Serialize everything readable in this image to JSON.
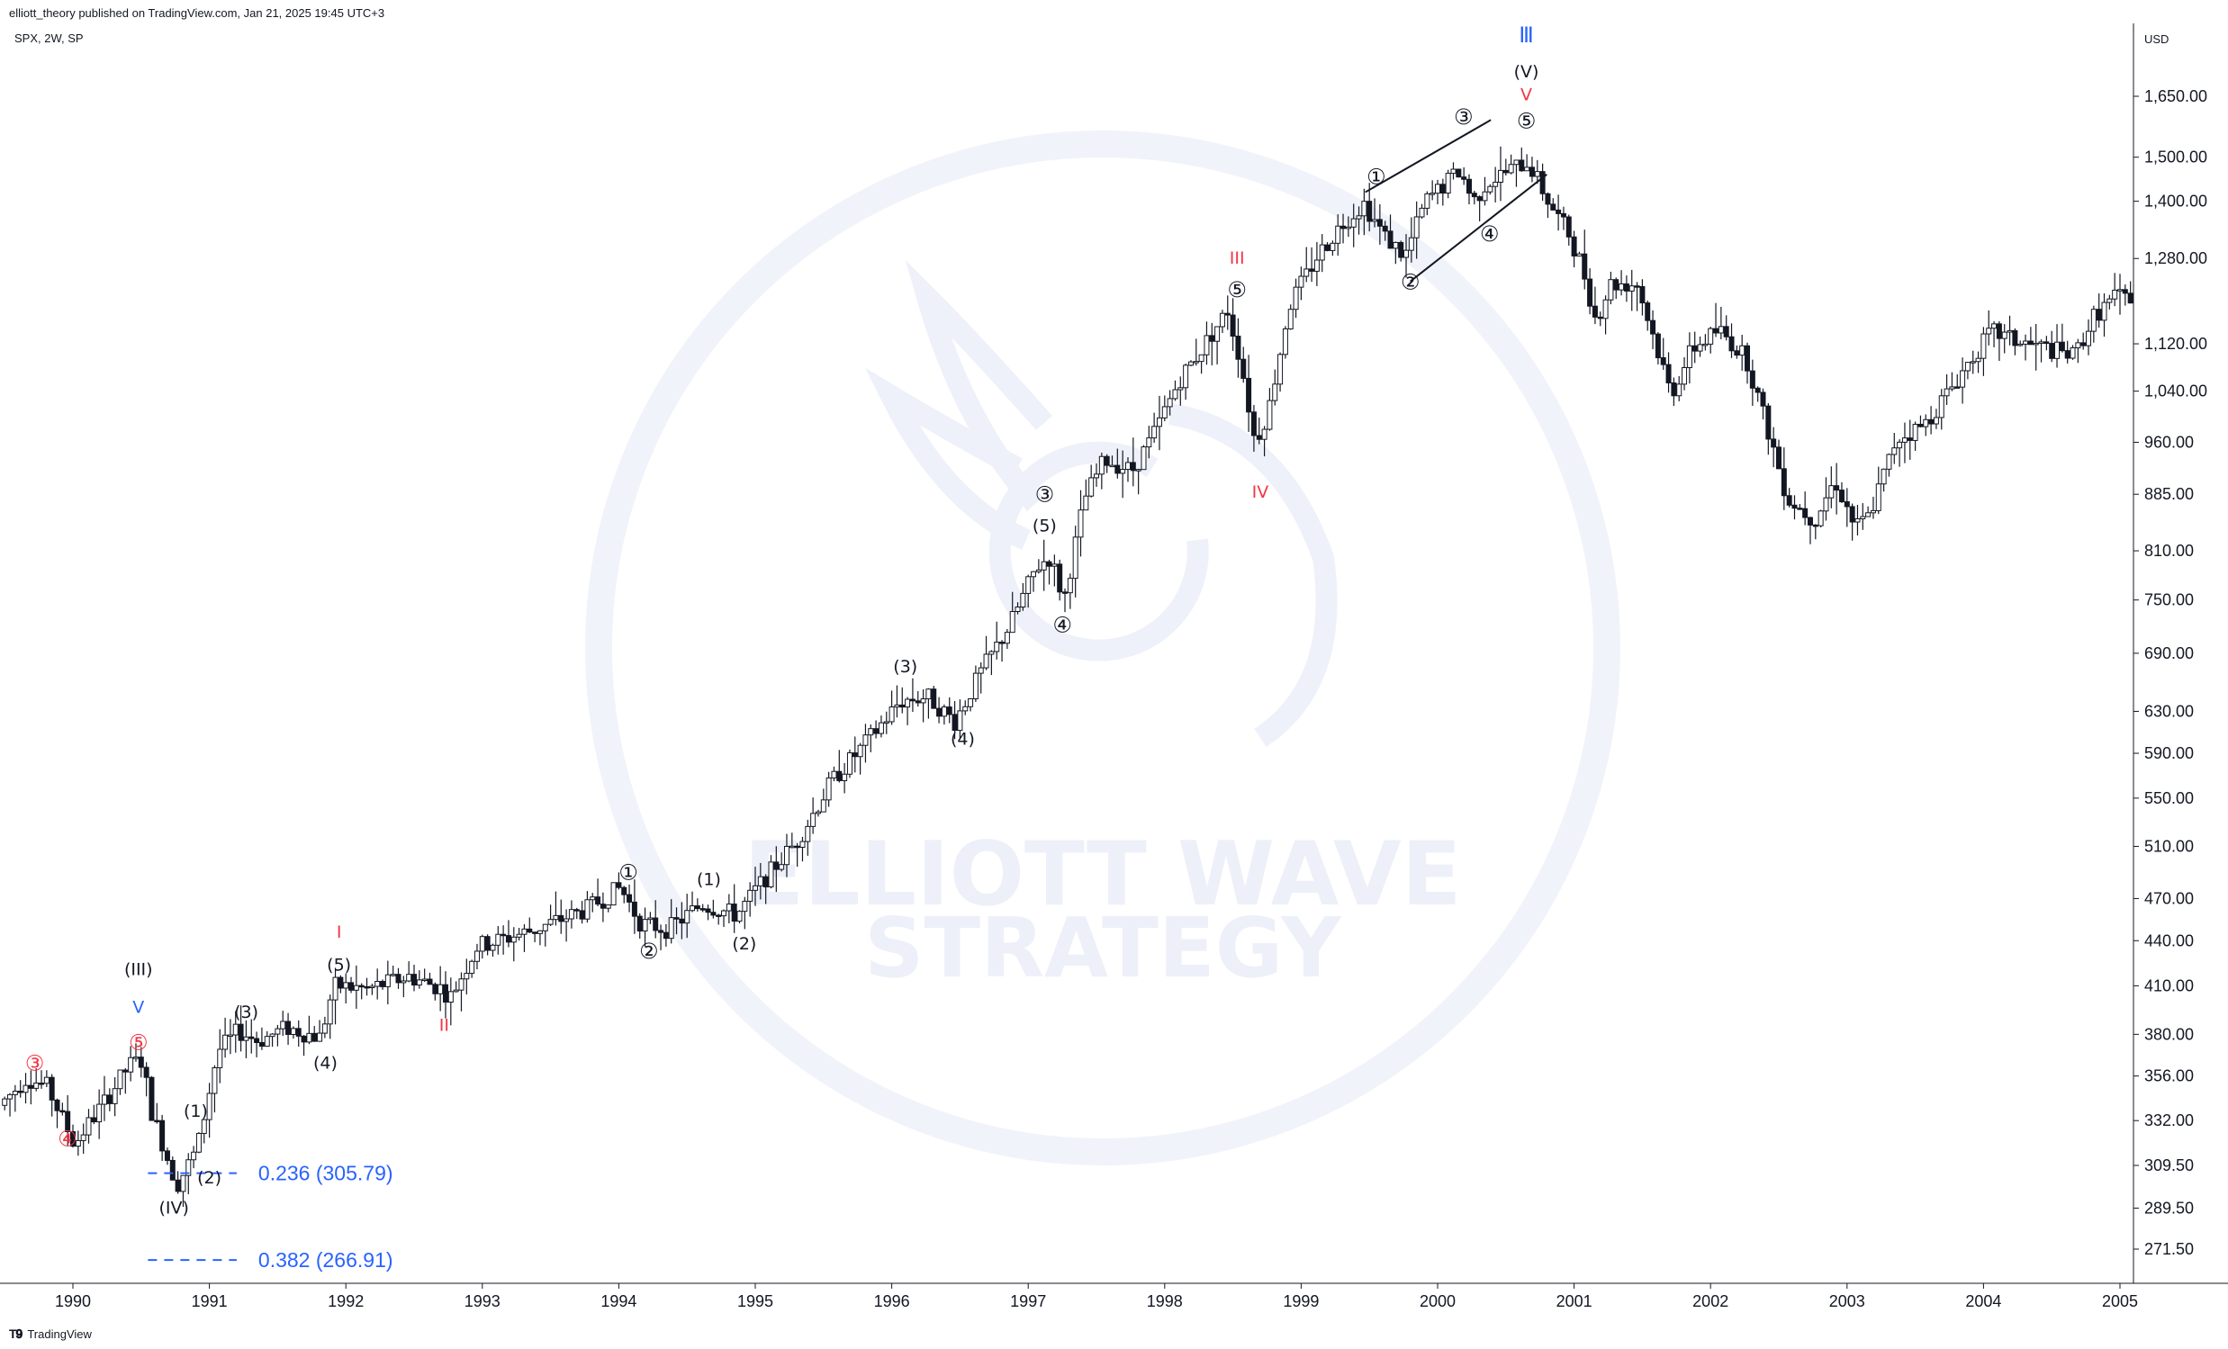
{
  "header": {
    "publish_note": "elliott_theory published on TradingView.com, Jan 21, 2025 19:45 UTC+3",
    "symbol_line": "SPX, 2W, SP"
  },
  "footer": {
    "brand": "TradingView",
    "logo_icon": "tradingview-logo-icon"
  },
  "watermark": {
    "line1": "ELLIOTT WAVE",
    "line2": "STRATEGY",
    "logo_icon": "phoenix-logo-icon"
  },
  "chart_data": {
    "type": "candlestick",
    "currency": "USD",
    "y_scale": "log",
    "ylim": [
      255,
      1810
    ],
    "xlim": [
      1989.5,
      2005.1
    ],
    "y_ticks": [
      "1,650.00",
      "1,500.00",
      "1,400.00",
      "1,280.00",
      "1,120.00",
      "1,040.00",
      "960.00",
      "885.00",
      "810.00",
      "750.00",
      "690.00",
      "630.00",
      "590.00",
      "550.00",
      "510.00",
      "470.00",
      "440.00",
      "410.00",
      "380.00",
      "356.00",
      "332.00",
      "309.50",
      "289.50",
      "271.50"
    ],
    "x_ticks": [
      "1990",
      "1991",
      "1992",
      "1993",
      "1994",
      "1995",
      "1996",
      "1997",
      "1998",
      "1999",
      "2000",
      "2001",
      "2002",
      "2003",
      "2004",
      "2005"
    ],
    "price_path": [
      [
        1989.5,
        340
      ],
      [
        1989.7,
        355
      ],
      [
        1989.85,
        350
      ],
      [
        1990.05,
        320
      ],
      [
        1990.3,
        345
      ],
      [
        1990.45,
        362
      ],
      [
        1990.55,
        365
      ],
      [
        1990.6,
        340
      ],
      [
        1990.8,
        300
      ],
      [
        1990.95,
        318
      ],
      [
        1991.1,
        370
      ],
      [
        1991.25,
        382
      ],
      [
        1991.4,
        376
      ],
      [
        1991.6,
        384
      ],
      [
        1991.85,
        378
      ],
      [
        1991.95,
        410
      ],
      [
        1992.2,
        408
      ],
      [
        1992.5,
        416
      ],
      [
        1992.75,
        408
      ],
      [
        1992.8,
        402
      ],
      [
        1993.0,
        436
      ],
      [
        1993.4,
        447
      ],
      [
        1993.8,
        462
      ],
      [
        1994.05,
        478
      ],
      [
        1994.2,
        452
      ],
      [
        1994.4,
        448
      ],
      [
        1994.65,
        466
      ],
      [
        1994.9,
        458
      ],
      [
        1995.1,
        484
      ],
      [
        1995.35,
        515
      ],
      [
        1995.6,
        565
      ],
      [
        1995.85,
        600
      ],
      [
        1996.1,
        640
      ],
      [
        1996.3,
        645
      ],
      [
        1996.5,
        620
      ],
      [
        1996.7,
        672
      ],
      [
        1996.9,
        720
      ],
      [
        1997.1,
        790
      ],
      [
        1997.2,
        802
      ],
      [
        1997.3,
        750
      ],
      [
        1997.45,
        878
      ],
      [
        1997.6,
        935
      ],
      [
        1997.8,
        918
      ],
      [
        1997.95,
        968
      ],
      [
        1998.15,
        1060
      ],
      [
        1998.3,
        1108
      ],
      [
        1998.5,
        1180
      ],
      [
        1998.6,
        1085
      ],
      [
        1998.7,
        960
      ],
      [
        1998.8,
        1010
      ],
      [
        1998.95,
        1188
      ],
      [
        1999.15,
        1282
      ],
      [
        1999.35,
        1356
      ],
      [
        1999.5,
        1395
      ],
      [
        1999.65,
        1325
      ],
      [
        1999.8,
        1285
      ],
      [
        1999.95,
        1400
      ],
      [
        2000.1,
        1440
      ],
      [
        2000.2,
        1470
      ],
      [
        2000.3,
        1400
      ],
      [
        2000.4,
        1442
      ],
      [
        2000.6,
        1475
      ],
      [
        2000.7,
        1490
      ],
      [
        2000.85,
        1400
      ],
      [
        2001.0,
        1330
      ],
      [
        2001.1,
        1262
      ],
      [
        2001.2,
        1160
      ],
      [
        2001.3,
        1230
      ],
      [
        2001.5,
        1230
      ],
      [
        2001.65,
        1110
      ],
      [
        2001.75,
        1035
      ],
      [
        2001.9,
        1110
      ],
      [
        2002.1,
        1145
      ],
      [
        2002.3,
        1095
      ],
      [
        2002.5,
        950
      ],
      [
        2002.6,
        880
      ],
      [
        2002.8,
        850
      ],
      [
        2002.95,
        905
      ],
      [
        2003.1,
        840
      ],
      [
        2003.2,
        855
      ],
      [
        2003.4,
        965
      ],
      [
        2003.6,
        985
      ],
      [
        2003.8,
        1045
      ],
      [
        2003.95,
        1095
      ],
      [
        2004.1,
        1142
      ],
      [
        2004.3,
        1122
      ],
      [
        2004.5,
        1112
      ],
      [
        2004.7,
        1098
      ],
      [
        2004.85,
        1170
      ],
      [
        2005.0,
        1205
      ],
      [
        2005.1,
        1205
      ]
    ],
    "annotations": [
      {
        "label": "③",
        "x": 1989.72,
        "price": 359,
        "color": "#f23645"
      },
      {
        "label": "④",
        "x": 1989.96,
        "price": 319,
        "color": "#f23645"
      },
      {
        "label": "(III)",
        "x": 1990.48,
        "price": 417,
        "color": "#131722"
      },
      {
        "label": "V",
        "x": 1990.48,
        "price": 393,
        "color": "#2962ff"
      },
      {
        "label": "⑤",
        "x": 1990.48,
        "price": 371,
        "color": "#f23645"
      },
      {
        "label": "(1)",
        "x": 1990.9,
        "price": 334,
        "color": "#131722"
      },
      {
        "label": "(2)",
        "x": 1991.0,
        "price": 301,
        "color": "#131722"
      },
      {
        "label": "(IV)",
        "x": 1990.74,
        "price": 287,
        "color": "#131722"
      },
      {
        "label": "(3)",
        "x": 1991.27,
        "price": 390,
        "color": "#131722"
      },
      {
        "label": "I",
        "x": 1991.95,
        "price": 442,
        "color": "#f23645"
      },
      {
        "label": "(5)",
        "x": 1991.95,
        "price": 420,
        "color": "#131722"
      },
      {
        "label": "(4)",
        "x": 1991.85,
        "price": 360,
        "color": "#131722"
      },
      {
        "label": "II",
        "x": 1992.72,
        "price": 382,
        "color": "#f23645"
      },
      {
        "label": "①",
        "x": 1994.07,
        "price": 484,
        "color": "#131722"
      },
      {
        "label": "②",
        "x": 1994.22,
        "price": 428,
        "color": "#131722"
      },
      {
        "label": "(1)",
        "x": 1994.66,
        "price": 480,
        "color": "#131722"
      },
      {
        "label": "(2)",
        "x": 1994.92,
        "price": 434,
        "color": "#131722"
      },
      {
        "label": "(3)",
        "x": 1996.1,
        "price": 670,
        "color": "#131722"
      },
      {
        "label": "(4)",
        "x": 1996.52,
        "price": 598,
        "color": "#131722"
      },
      {
        "label": "③",
        "x": 1997.12,
        "price": 875,
        "color": "#131722"
      },
      {
        "label": "(5)",
        "x": 1997.12,
        "price": 835,
        "color": "#131722"
      },
      {
        "label": "④",
        "x": 1997.25,
        "price": 713,
        "color": "#131722"
      },
      {
        "label": "III",
        "x": 1998.53,
        "price": 1270,
        "color": "#f23645"
      },
      {
        "label": "⑤",
        "x": 1998.53,
        "price": 1205,
        "color": "#131722"
      },
      {
        "label": "IV",
        "x": 1998.7,
        "price": 880,
        "color": "#f23645"
      },
      {
        "label": "①",
        "x": 1999.55,
        "price": 1438,
        "color": "#131722"
      },
      {
        "label": "②",
        "x": 1999.8,
        "price": 1220,
        "color": "#131722"
      },
      {
        "label": "③",
        "x": 2000.19,
        "price": 1580,
        "color": "#131722"
      },
      {
        "label": "④",
        "x": 2000.38,
        "price": 1315,
        "color": "#131722"
      },
      {
        "label": "Ⅲ",
        "x": 2000.65,
        "price": 1795,
        "color": "#2962ff"
      },
      {
        "label": "(V)",
        "x": 2000.65,
        "price": 1700,
        "color": "#131722"
      },
      {
        "label": "V",
        "x": 2000.65,
        "price": 1640,
        "color": "#f23645"
      },
      {
        "label": "⑤",
        "x": 2000.65,
        "price": 1570,
        "color": "#131722"
      }
    ],
    "trendlines": [
      {
        "from": [
          1999.47,
          1420
        ],
        "to": [
          2000.39,
          1590
        ]
      },
      {
        "from": [
          1999.8,
          1235
        ],
        "to": [
          2000.8,
          1460
        ]
      }
    ],
    "fib_levels": [
      {
        "ratio": "0.236",
        "price": 305.79,
        "label": "0.236 (305.79)"
      },
      {
        "ratio": "0.382",
        "price": 266.91,
        "label": "0.382 (266.91)"
      }
    ],
    "colors": {
      "up": "#131722",
      "down": "#131722",
      "fib": "#2962ff",
      "axis": "#131722",
      "grid": "#e0e3eb"
    }
  }
}
